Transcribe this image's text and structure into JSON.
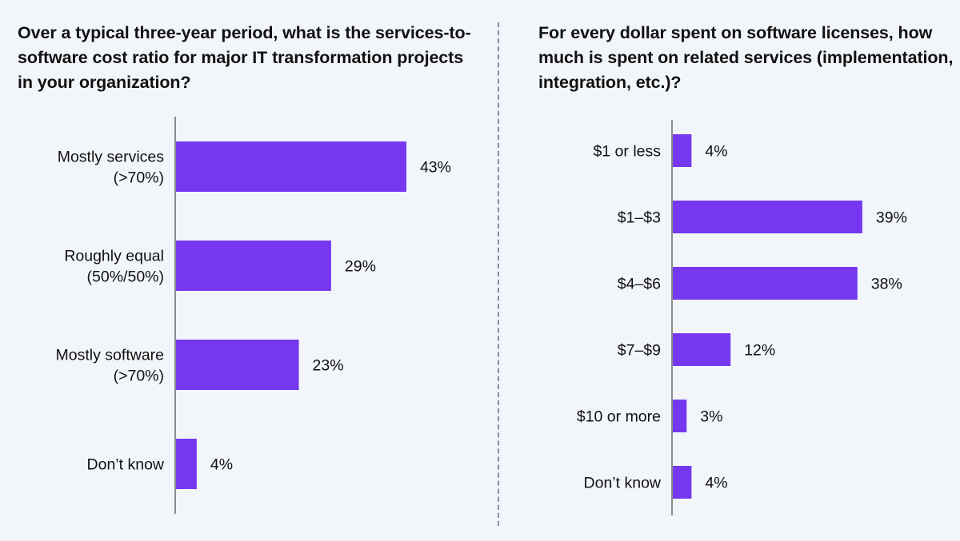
{
  "colors": {
    "bar": "#7538f0",
    "axis": "#8c8c8c",
    "background": "#f2f5f9",
    "divider": "#7f93ab"
  },
  "chart_data": [
    {
      "type": "bar",
      "orientation": "horizontal",
      "title": "Over a typical three-year period, what is the services-to-software cost ratio for major IT transformation projects in your organization?",
      "categories": [
        [
          "Mostly services",
          "(>70%)"
        ],
        [
          "Roughly equal",
          "(50%/50%)"
        ],
        [
          "Mostly software",
          "(>70%)"
        ],
        [
          "Don’t know"
        ]
      ],
      "values": [
        43,
        29,
        23,
        4
      ],
      "value_labels": [
        "43%",
        "29%",
        "23%",
        "4%"
      ],
      "xlabel": "",
      "ylabel": "",
      "xlim": [
        0,
        45
      ],
      "grid": false,
      "legend": "none"
    },
    {
      "type": "bar",
      "orientation": "horizontal",
      "title": "For every dollar spent on software licenses, how much is spent on related services (implementation, integration, etc.)?",
      "categories": [
        [
          "$1 or less"
        ],
        [
          "$1–$3"
        ],
        [
          "$4–$6"
        ],
        [
          "$7–$9"
        ],
        [
          "$10 or more"
        ],
        [
          "Don’t know"
        ]
      ],
      "values": [
        4,
        39,
        38,
        12,
        3,
        4
      ],
      "value_labels": [
        "4%",
        "39%",
        "38%",
        "12%",
        "3%",
        "4%"
      ],
      "xlabel": "",
      "ylabel": "",
      "xlim": [
        0,
        45
      ],
      "grid": false,
      "legend": "none"
    }
  ]
}
